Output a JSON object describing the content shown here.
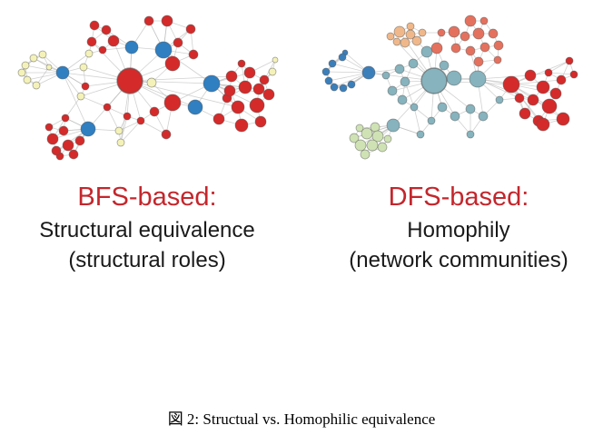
{
  "panels": [
    {
      "heading": "BFS-based:",
      "line1": "Structural equivalence",
      "line2": "(structural roles)"
    },
    {
      "heading": "DFS-based:",
      "line1": "Homophily",
      "line2": "(network communities)"
    }
  ],
  "caption": "図 2: Structual vs. Homophilic equivalence",
  "colors": {
    "heading": "#c4262c",
    "edge": "#bdbdbd",
    "bfs_hub": "#d42a2a",
    "bfs_bridge": "#2f7fc1",
    "bfs_leaf": "#f4f2b8",
    "dfs_teal": "#86b3bd",
    "dfs_blue": "#3b7fba",
    "dfs_orange": "#f0b88a",
    "dfs_salmon": "#e4715e",
    "dfs_green": "#cfe2b4",
    "dfs_red": "#d42a2a"
  }
}
